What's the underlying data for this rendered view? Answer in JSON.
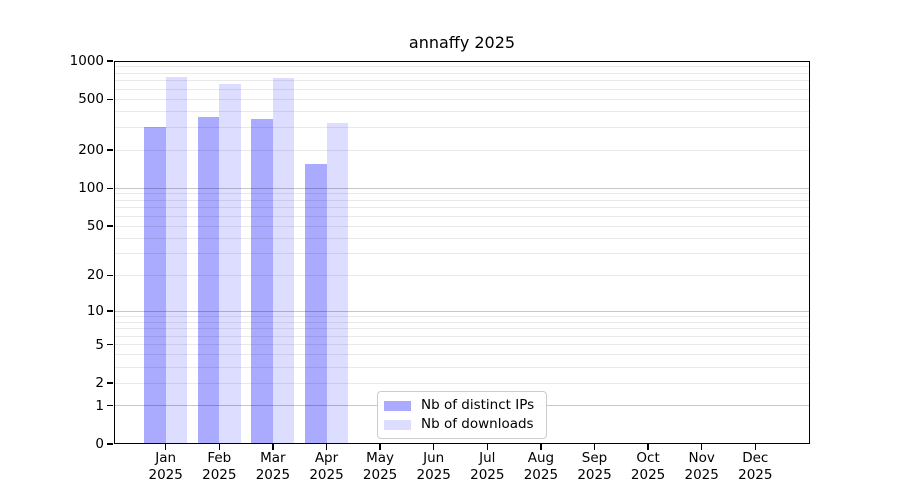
{
  "chart_data": {
    "type": "bar",
    "title": "annaffy 2025",
    "y_scale": "log1p",
    "y_scale_note": "y position proportional to log10(1+value); 0 at baseline",
    "ylim": [
      0,
      1000
    ],
    "yticks": [
      0,
      1,
      2,
      5,
      10,
      20,
      50,
      100,
      200,
      500,
      1000
    ],
    "major_gridlines": [
      1,
      10,
      100,
      1000
    ],
    "grid": "both",
    "categories": [
      "Jan",
      "Feb",
      "Mar",
      "Apr",
      "May",
      "Jun",
      "Jul",
      "Aug",
      "Sep",
      "Oct",
      "Nov",
      "Dec"
    ],
    "x_year_label": "2025",
    "series": [
      {
        "name": "Nb of distinct IPs",
        "color": "#aaaaff",
        "values": [
          303,
          366,
          353,
          156,
          null,
          null,
          null,
          null,
          null,
          null,
          null,
          null
        ]
      },
      {
        "name": "Nb of downloads",
        "color": "#ddddff",
        "values": [
          752,
          665,
          733,
          328,
          null,
          null,
          null,
          null,
          null,
          null,
          null,
          null
        ]
      }
    ],
    "legend": {
      "position": "lower center",
      "entries": [
        "Nb of distinct IPs",
        "Nb of downloads"
      ]
    }
  }
}
